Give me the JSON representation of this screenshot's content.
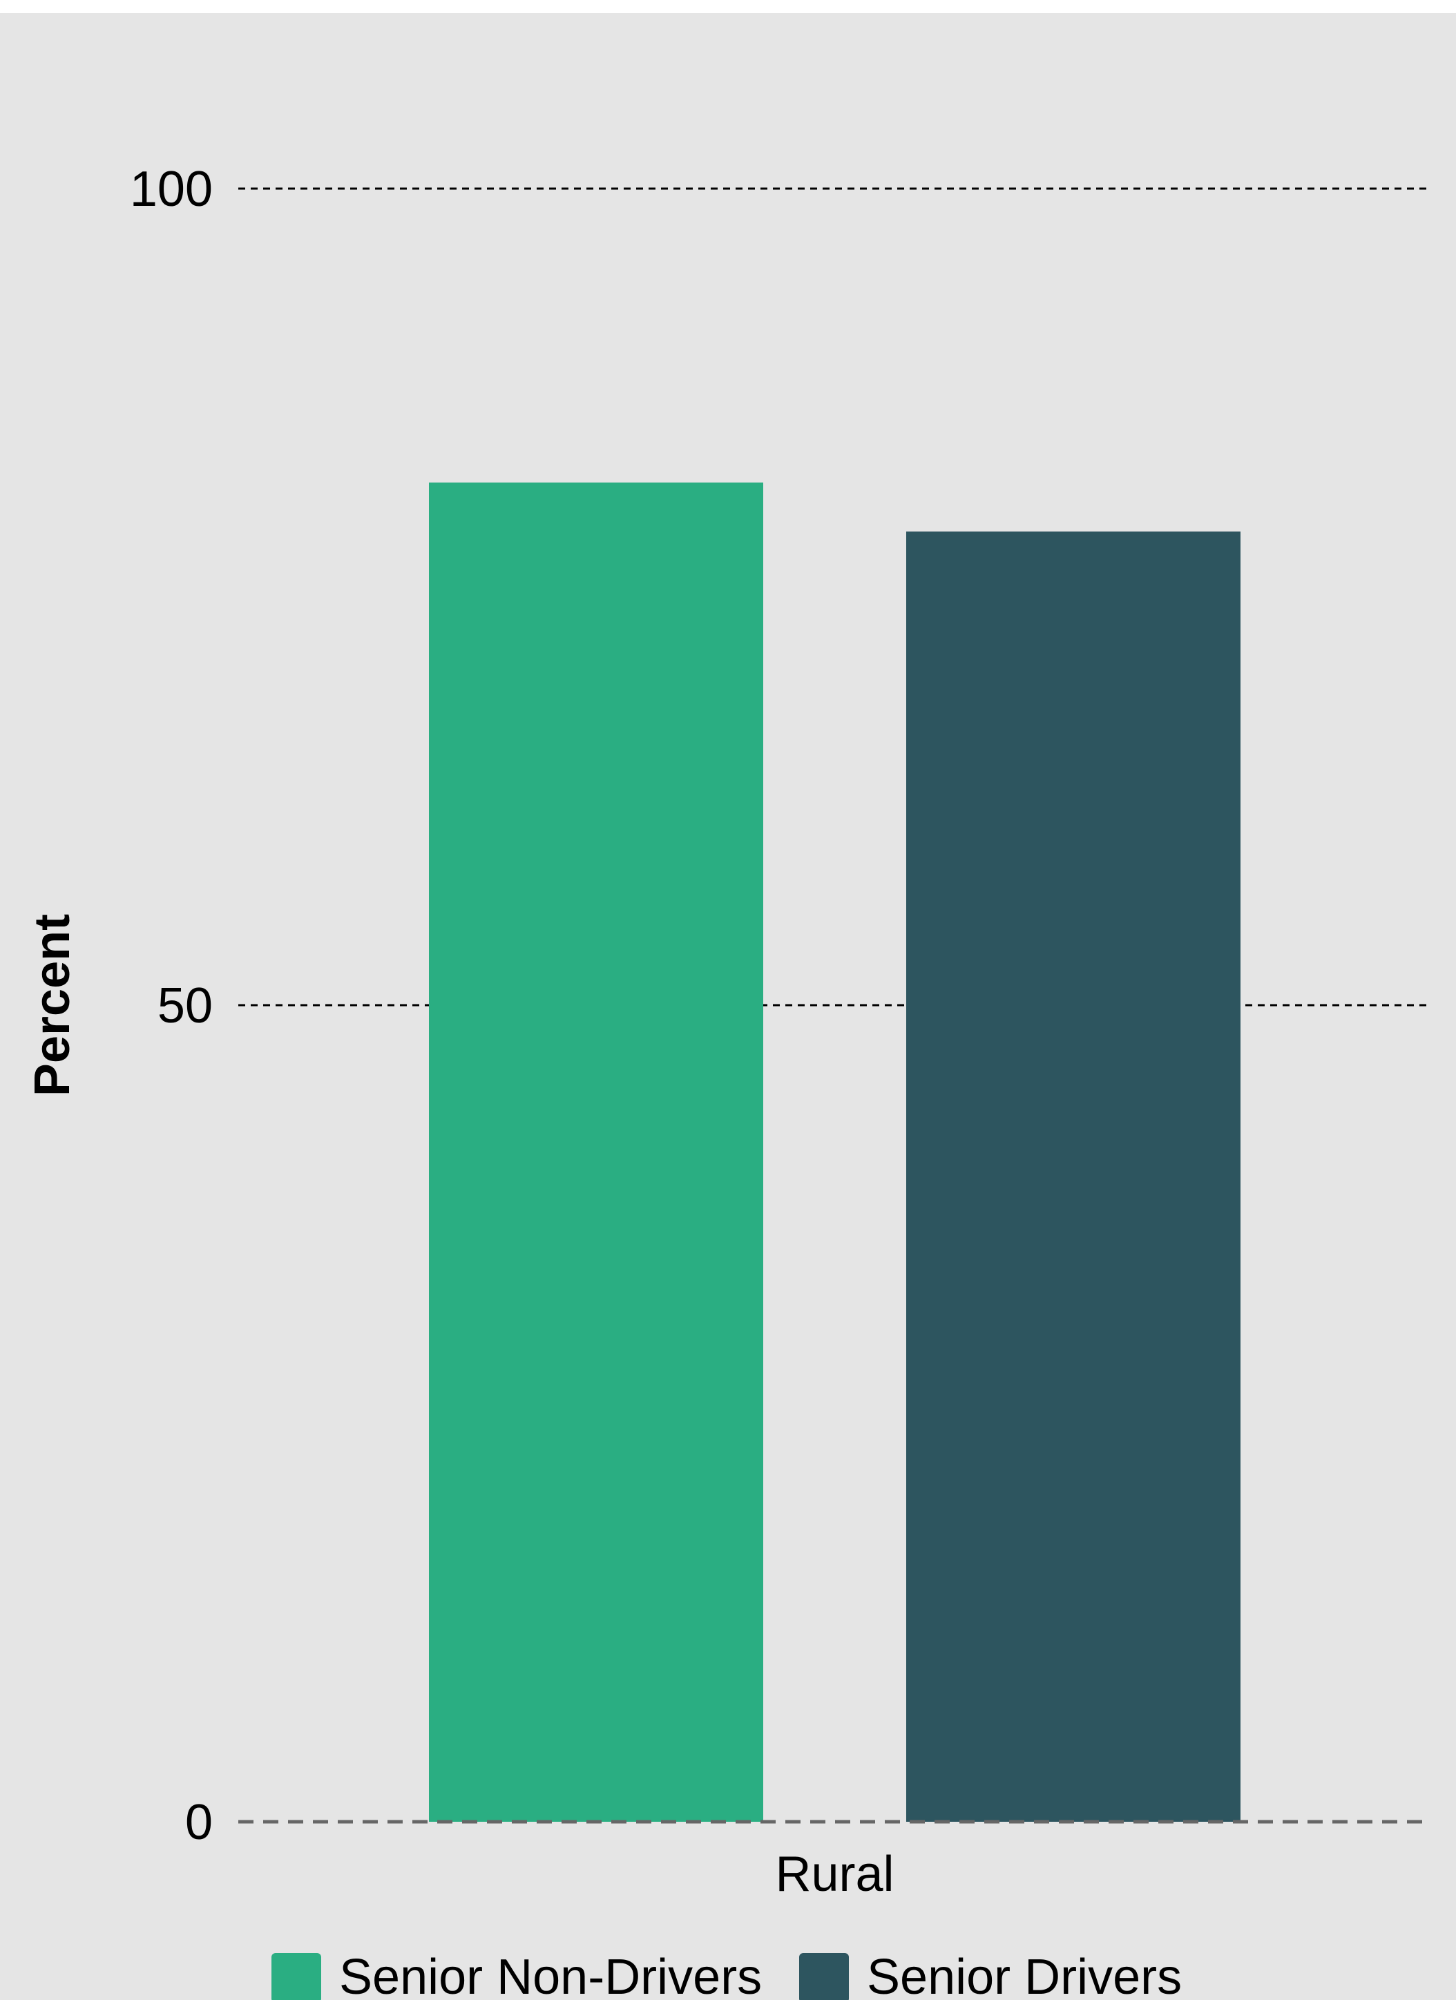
{
  "chart_data": {
    "type": "bar",
    "categories": [
      "Rural"
    ],
    "series": [
      {
        "name": "Senior Non-Drivers",
        "values": [
          82
        ],
        "color": "#2aae82"
      },
      {
        "name": "Senior Drivers",
        "values": [
          79
        ],
        "color": "#2d555f"
      }
    ],
    "title": "",
    "xlabel": "",
    "ylabel": "Percent",
    "ylim": [
      0,
      100
    ],
    "yticks": [
      "0",
      "50",
      "100"
    ],
    "grid": true,
    "legend_position": "bottom"
  },
  "colors": {
    "background": "#e5e5e5",
    "grid": "#000000",
    "baseline": "#666666"
  }
}
